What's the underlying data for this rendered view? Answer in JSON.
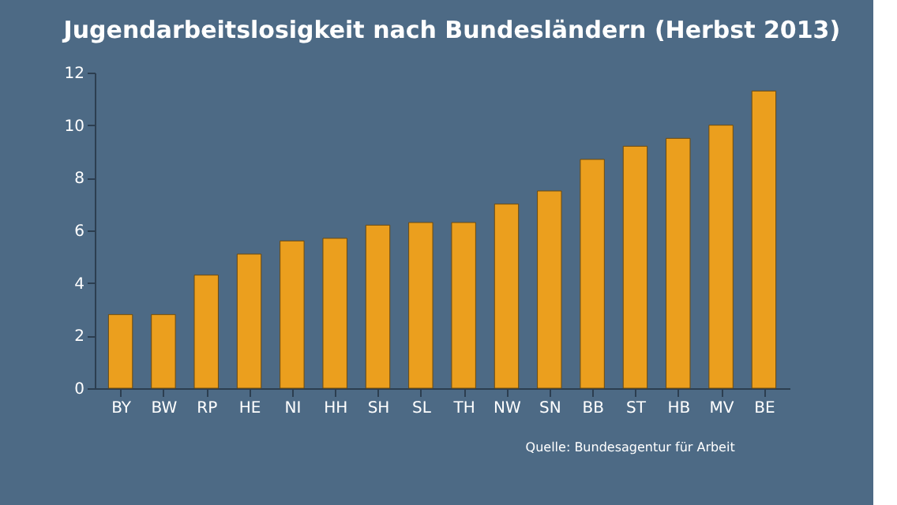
{
  "chart_data": {
    "type": "bar",
    "title": "Jugendarbeitslosigkeit nach Bundesländern (Herbst 2013)",
    "categories": [
      "BY",
      "BW",
      "RP",
      "HE",
      "NI",
      "HH",
      "SH",
      "SL",
      "TH",
      "NW",
      "SN",
      "BB",
      "ST",
      "HB",
      "MV",
      "BE"
    ],
    "values": [
      2.8,
      2.8,
      4.3,
      5.1,
      5.6,
      5.7,
      6.2,
      6.3,
      6.3,
      7.0,
      7.5,
      8.7,
      9.2,
      9.5,
      10.0,
      11.3
    ],
    "color": "#eb9f1e",
    "ylim": [
      0,
      12
    ],
    "yticks": [
      0,
      2,
      4,
      6,
      8,
      10,
      12
    ],
    "grid": false,
    "annotations": [
      "Quelle: Bundesagentur für Arbeit"
    ]
  }
}
